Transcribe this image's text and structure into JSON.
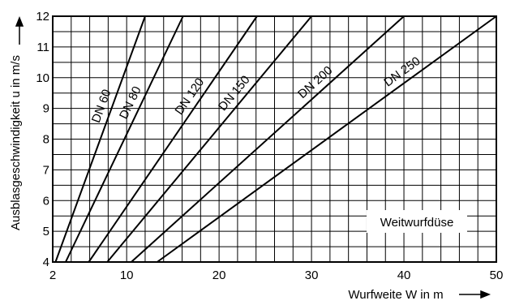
{
  "chart_data": {
    "type": "line",
    "title": "",
    "xlabel": "Wurfweite W in m",
    "ylabel": "Ausblasgeschwindigkeit u in m/s",
    "xlim": [
      2,
      50
    ],
    "ylim": [
      4,
      12
    ],
    "x_ticks": [
      2,
      10,
      20,
      30,
      40,
      50
    ],
    "y_ticks": [
      4,
      5,
      6,
      7,
      8,
      9,
      10,
      11,
      12
    ],
    "grid": true,
    "series": [
      {
        "name": "DN 60",
        "x": [
          2.3,
          12.0
        ],
        "y": [
          4,
          12
        ]
      },
      {
        "name": "DN 80",
        "x": [
          3.4,
          16.1
        ],
        "y": [
          4,
          12
        ]
      },
      {
        "name": "DN 120",
        "x": [
          5.9,
          24.1
        ],
        "y": [
          4,
          12
        ]
      },
      {
        "name": "DN 150",
        "x": [
          7.9,
          30.0
        ],
        "y": [
          4,
          12
        ]
      },
      {
        "name": "DN 200",
        "x": [
          10.5,
          40.0
        ],
        "y": [
          4,
          12
        ]
      },
      {
        "name": "DN 250",
        "x": [
          13.3,
          50.0
        ],
        "y": [
          4,
          12
        ]
      }
    ],
    "annotations": [
      "Weitwurfdüse"
    ]
  }
}
